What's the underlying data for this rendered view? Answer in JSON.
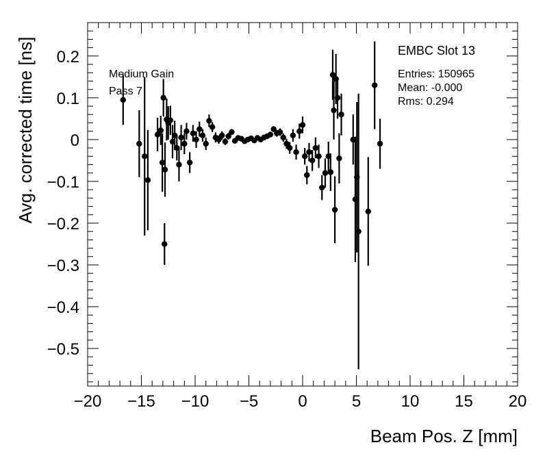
{
  "chart_data": {
    "type": "scatter",
    "title": "",
    "xlabel": "Beam Pos. Z [mm]",
    "ylabel": "Avg. corrected time [ns]",
    "xlim": [
      -20,
      20
    ],
    "ylim": [
      -0.59,
      0.28
    ],
    "x_ticks": [
      -20,
      -15,
      -10,
      -5,
      0,
      5,
      10,
      15,
      20
    ],
    "x_tick_labels": [
      "−20",
      "−15",
      "−10",
      "−5",
      "0",
      "5",
      "10",
      "15",
      "20"
    ],
    "y_ticks": [
      0.2,
      0.1,
      0,
      -0.1,
      -0.2,
      -0.3,
      -0.4,
      -0.5
    ],
    "y_tick_labels": [
      "0.2",
      "0.1",
      "0",
      "−0.1",
      "−0.2",
      "−0.3",
      "−0.4",
      "−0.5"
    ],
    "grid": false,
    "annotations": {
      "line1": "Medium Gain",
      "line2": "Pass 7"
    },
    "stats_box": {
      "title": "EMBC Slot 13",
      "entries": "Entries: 150965",
      "mean": "Mean: -0.000",
      "rms": "Rms: 0.294"
    },
    "series": [
      {
        "marker": "circle",
        "color": "#000000",
        "points": [
          {
            "x": -16.7,
            "y": 0.095,
            "err": 0.06
          },
          {
            "x": -15.2,
            "y": -0.01,
            "err": 0.08
          },
          {
            "x": -14.7,
            "y": -0.04,
            "err": 0.19
          },
          {
            "x": -14.4,
            "y": -0.097,
            "err": 0.12
          },
          {
            "x": -13.5,
            "y": 0.012,
            "err": 0.04
          },
          {
            "x": -13.2,
            "y": 0.022,
            "err": 0.035
          },
          {
            "x": -13.05,
            "y": -0.055,
            "err": 0.07
          },
          {
            "x": -12.95,
            "y": 0.1,
            "err": 0.045
          },
          {
            "x": -12.85,
            "y": -0.25,
            "err": 0.05
          },
          {
            "x": -12.8,
            "y": -0.072,
            "err": 0.065
          },
          {
            "x": -12.65,
            "y": 0.048,
            "err": 0.05
          },
          {
            "x": -12.5,
            "y": 0.04,
            "err": 0.04
          },
          {
            "x": -12.3,
            "y": 0.046,
            "err": 0.035
          },
          {
            "x": -12.1,
            "y": -0.005,
            "err": 0.04
          },
          {
            "x": -11.9,
            "y": 0.01,
            "err": 0.035
          },
          {
            "x": -11.7,
            "y": -0.02,
            "err": 0.03
          },
          {
            "x": -11.5,
            "y": -0.06,
            "err": 0.04
          },
          {
            "x": -11.3,
            "y": 0.005,
            "err": 0.03
          },
          {
            "x": -11.0,
            "y": -0.01,
            "err": 0.025
          },
          {
            "x": -10.8,
            "y": 0.02,
            "err": 0.02
          },
          {
            "x": -10.5,
            "y": -0.055,
            "err": 0.025
          },
          {
            "x": -10.2,
            "y": 0.015,
            "err": 0.02
          },
          {
            "x": -9.9,
            "y": 0.0,
            "err": 0.02
          },
          {
            "x": -9.6,
            "y": 0.025,
            "err": 0.018
          },
          {
            "x": -9.3,
            "y": 0.01,
            "err": 0.015
          },
          {
            "x": -9.0,
            "y": -0.01,
            "err": 0.015
          },
          {
            "x": -8.7,
            "y": 0.045,
            "err": 0.015
          },
          {
            "x": -8.4,
            "y": 0.03,
            "err": 0.012
          },
          {
            "x": -8.1,
            "y": 0.005,
            "err": 0.012
          },
          {
            "x": -7.8,
            "y": 0.0,
            "err": 0.01
          },
          {
            "x": -7.5,
            "y": 0.01,
            "err": 0.01
          },
          {
            "x": -7.2,
            "y": -0.005,
            "err": 0.008
          },
          {
            "x": -6.9,
            "y": 0.008,
            "err": 0.008
          },
          {
            "x": -6.6,
            "y": 0.018,
            "err": 0.007
          },
          {
            "x": -6.3,
            "y": -0.003,
            "err": 0.006
          },
          {
            "x": -6.0,
            "y": 0.004,
            "err": 0.006
          },
          {
            "x": -5.7,
            "y": 0.002,
            "err": 0.005
          },
          {
            "x": -5.4,
            "y": -0.004,
            "err": 0.005
          },
          {
            "x": -5.1,
            "y": 0.0,
            "err": 0.005
          },
          {
            "x": -4.8,
            "y": 0.003,
            "err": 0.005
          },
          {
            "x": -4.5,
            "y": -0.002,
            "err": 0.005
          },
          {
            "x": -4.2,
            "y": 0.004,
            "err": 0.005
          },
          {
            "x": -3.9,
            "y": 0.0,
            "err": 0.005
          },
          {
            "x": -3.6,
            "y": 0.005,
            "err": 0.005
          },
          {
            "x": -3.3,
            "y": 0.008,
            "err": 0.006
          },
          {
            "x": -3.0,
            "y": 0.012,
            "err": 0.006
          },
          {
            "x": -2.7,
            "y": 0.025,
            "err": 0.007
          },
          {
            "x": -2.4,
            "y": 0.015,
            "err": 0.008
          },
          {
            "x": -2.1,
            "y": 0.018,
            "err": 0.009
          },
          {
            "x": -1.8,
            "y": 0.005,
            "err": 0.01
          },
          {
            "x": -1.5,
            "y": -0.01,
            "err": 0.012
          },
          {
            "x": -1.2,
            "y": -0.02,
            "err": 0.014
          },
          {
            "x": -0.9,
            "y": 0.01,
            "err": 0.015
          },
          {
            "x": -0.6,
            "y": -0.03,
            "err": 0.018
          },
          {
            "x": -0.3,
            "y": 0.02,
            "err": 0.018
          },
          {
            "x": 0.0,
            "y": 0.035,
            "err": 0.02
          },
          {
            "x": 0.2,
            "y": -0.04,
            "err": 0.02
          },
          {
            "x": 0.4,
            "y": -0.085,
            "err": 0.022
          },
          {
            "x": 0.6,
            "y": -0.03,
            "err": 0.022
          },
          {
            "x": 0.9,
            "y": -0.05,
            "err": 0.025
          },
          {
            "x": 1.2,
            "y": -0.02,
            "err": 0.025
          },
          {
            "x": 1.5,
            "y": -0.04,
            "err": 0.028
          },
          {
            "x": 1.8,
            "y": -0.115,
            "err": 0.03
          },
          {
            "x": 2.1,
            "y": -0.08,
            "err": 0.035
          },
          {
            "x": 2.4,
            "y": -0.04,
            "err": 0.035
          },
          {
            "x": 2.6,
            "y": -0.078,
            "err": 0.045
          },
          {
            "x": 2.8,
            "y": 0.155,
            "err": 0.06
          },
          {
            "x": 2.9,
            "y": 0.07,
            "err": 0.07
          },
          {
            "x": 3.0,
            "y": -0.168,
            "err": 0.08
          },
          {
            "x": 3.1,
            "y": 0.145,
            "err": 0.06
          },
          {
            "x": 3.25,
            "y": 0.1,
            "err": 0.05
          },
          {
            "x": 3.4,
            "y": -0.045,
            "err": 0.06
          },
          {
            "x": 3.6,
            "y": 0.06,
            "err": 0.05
          },
          {
            "x": 4.7,
            "y": 0.0,
            "err": 0.06
          },
          {
            "x": 4.9,
            "y": -0.143,
            "err": 0.15
          },
          {
            "x": 5.05,
            "y": -0.09,
            "err": 0.18
          },
          {
            "x": 5.2,
            "y": -0.22,
            "err": 0.33
          },
          {
            "x": 6.1,
            "y": -0.172,
            "err": 0.13
          },
          {
            "x": 6.7,
            "y": 0.13,
            "err": 0.105
          },
          {
            "x": 7.2,
            "y": -0.01,
            "err": 0.06
          }
        ]
      }
    ]
  }
}
